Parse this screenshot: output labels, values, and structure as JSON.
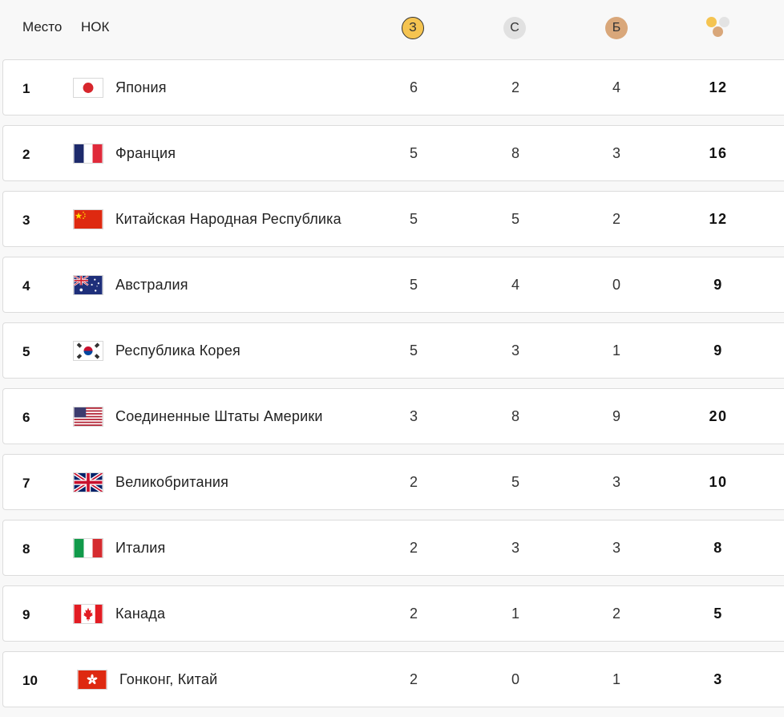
{
  "header": {
    "rank_label": "Место",
    "noc_label": "НОК",
    "gold_label": "З",
    "silver_label": "С",
    "bronze_label": "Б",
    "total_icon": "medals-total-icon"
  },
  "colors": {
    "gold": "#f5c451",
    "silver": "#e1e1e1",
    "bronze": "#d9a77a"
  },
  "rows": [
    {
      "rank": "1",
      "country": "Япония",
      "flag": "japan-flag-icon",
      "gold": "6",
      "silver": "2",
      "bronze": "4",
      "total": "12"
    },
    {
      "rank": "2",
      "country": "Франция",
      "flag": "france-flag-icon",
      "gold": "5",
      "silver": "8",
      "bronze": "3",
      "total": "16"
    },
    {
      "rank": "3",
      "country": "Китайская Народная Республика",
      "flag": "china-flag-icon",
      "gold": "5",
      "silver": "5",
      "bronze": "2",
      "total": "12"
    },
    {
      "rank": "4",
      "country": "Австралия",
      "flag": "australia-flag-icon",
      "gold": "5",
      "silver": "4",
      "bronze": "0",
      "total": "9"
    },
    {
      "rank": "5",
      "country": "Республика Корея",
      "flag": "korea-flag-icon",
      "gold": "5",
      "silver": "3",
      "bronze": "1",
      "total": "9"
    },
    {
      "rank": "6",
      "country": "Соединенные Штаты Америки",
      "flag": "usa-flag-icon",
      "gold": "3",
      "silver": "8",
      "bronze": "9",
      "total": "20"
    },
    {
      "rank": "7",
      "country": "Великобритания",
      "flag": "uk-flag-icon",
      "gold": "2",
      "silver": "5",
      "bronze": "3",
      "total": "10"
    },
    {
      "rank": "8",
      "country": "Италия",
      "flag": "italy-flag-icon",
      "gold": "2",
      "silver": "3",
      "bronze": "3",
      "total": "8"
    },
    {
      "rank": "9",
      "country": "Канада",
      "flag": "canada-flag-icon",
      "gold": "2",
      "silver": "1",
      "bronze": "2",
      "total": "5"
    },
    {
      "rank": "10",
      "country": "Гонконг, Китай",
      "flag": "hong-kong-flag-icon",
      "gold": "2",
      "silver": "0",
      "bronze": "1",
      "total": "3"
    }
  ]
}
